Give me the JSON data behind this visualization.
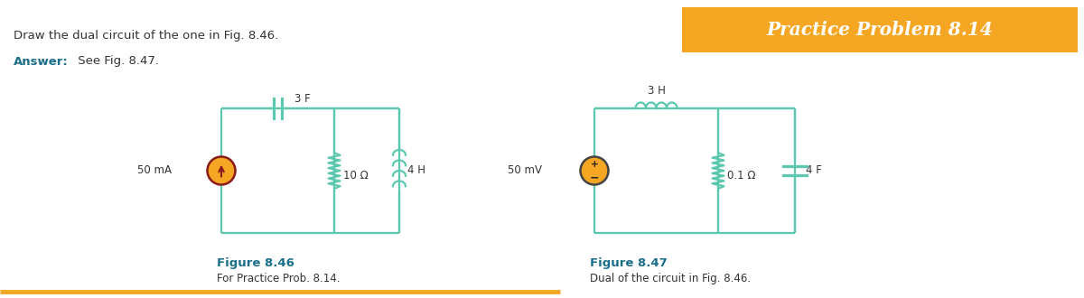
{
  "title_text": "Practice Problem 8.14",
  "title_bg": "#f5a623",
  "title_text_color": "#ffffff",
  "question_text": "Draw the dual circuit of the one in Fig. 8.46.",
  "answer_label": "Answer:",
  "answer_rest": " See Fig. 8.47.",
  "fig846_label": "Figure 8.46",
  "fig846_sub": "For Practice Prob. 8.14.",
  "fig847_label": "Figure 8.47",
  "fig847_sub": "Dual of the circuit in Fig. 8.46.",
  "cc": "#5bc8af",
  "source_fill": "#f5a623",
  "source_arrow": "#8b1a1a",
  "bg": "#ffffff",
  "bottom_line": "#f5a623",
  "label_color": "#1a6e8a",
  "text_color": "#333333"
}
